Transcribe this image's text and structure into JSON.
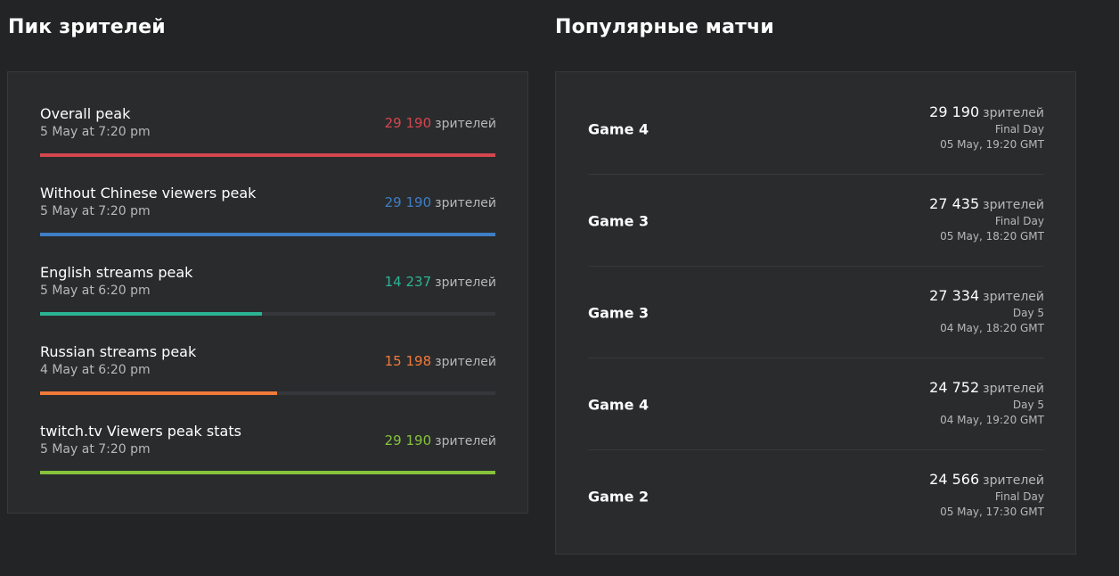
{
  "peak_section": {
    "title": "Пик зрителей",
    "unit": "зрителей",
    "items": [
      {
        "label": "Overall peak",
        "date": "5 May at 7:20 pm",
        "count": "29 190",
        "value": 29190,
        "color": "#d4474e"
      },
      {
        "label": "Without Chinese viewers peak",
        "date": "5 May at 7:20 pm",
        "count": "29 190",
        "value": 29190,
        "color": "#3f7ec4"
      },
      {
        "label": "English streams peak",
        "date": "5 May at 6:20 pm",
        "count": "14 237",
        "value": 14237,
        "color": "#2bb494"
      },
      {
        "label": "Russian streams peak",
        "date": "4 May at 6:20 pm",
        "count": "15 198",
        "value": 15198,
        "color": "#f17a3a"
      },
      {
        "label": "twitch.tv Viewers peak stats",
        "date": "5 May at 7:20 pm",
        "count": "29 190",
        "value": 29190,
        "color": "#86c23c"
      }
    ]
  },
  "matches_section": {
    "title": "Популярные матчи",
    "unit": "зрителей",
    "items": [
      {
        "name": "Game 4",
        "viewers": "29 190",
        "stage": "Final Day",
        "time": "05 May, 19:20 GMT"
      },
      {
        "name": "Game 3",
        "viewers": "27 435",
        "stage": "Final Day",
        "time": "05 May, 18:20 GMT"
      },
      {
        "name": "Game 3",
        "viewers": "27 334",
        "stage": "Day 5",
        "time": "04 May, 18:20 GMT"
      },
      {
        "name": "Game 4",
        "viewers": "24 752",
        "stage": "Day 5",
        "time": "04 May, 19:20 GMT"
      },
      {
        "name": "Game 2",
        "viewers": "24 566",
        "stage": "Final Day",
        "time": "05 May, 17:30 GMT"
      }
    ]
  }
}
